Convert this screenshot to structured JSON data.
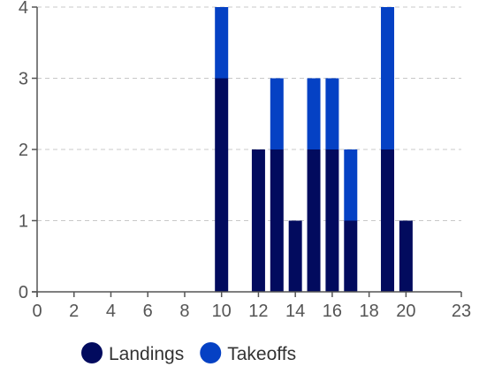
{
  "chart_data": {
    "type": "bar",
    "stacked": true,
    "title": "",
    "xlabel": "",
    "ylabel": "",
    "x": [
      10,
      12,
      13,
      14,
      15,
      16,
      17,
      19,
      20
    ],
    "series": [
      {
        "name": "Landings",
        "color": "#020b5e",
        "values": [
          3,
          2,
          2,
          1,
          2,
          2,
          1,
          2,
          1
        ]
      },
      {
        "name": "Takeoffs",
        "color": "#0541c4",
        "values": [
          1,
          0,
          1,
          0,
          1,
          1,
          1,
          2,
          0
        ]
      }
    ],
    "xlim": [
      0,
      23
    ],
    "ylim": [
      0,
      4
    ],
    "xticks": [
      0,
      2,
      4,
      6,
      8,
      10,
      12,
      14,
      16,
      18,
      20,
      23
    ],
    "yticks": [
      0,
      1,
      2,
      3,
      4
    ],
    "grid": true,
    "legend_position": "bottom-left"
  },
  "legend": {
    "items": [
      {
        "label": "Landings",
        "color": "#020b5e"
      },
      {
        "label": "Takeoffs",
        "color": "#0541c4"
      }
    ]
  }
}
